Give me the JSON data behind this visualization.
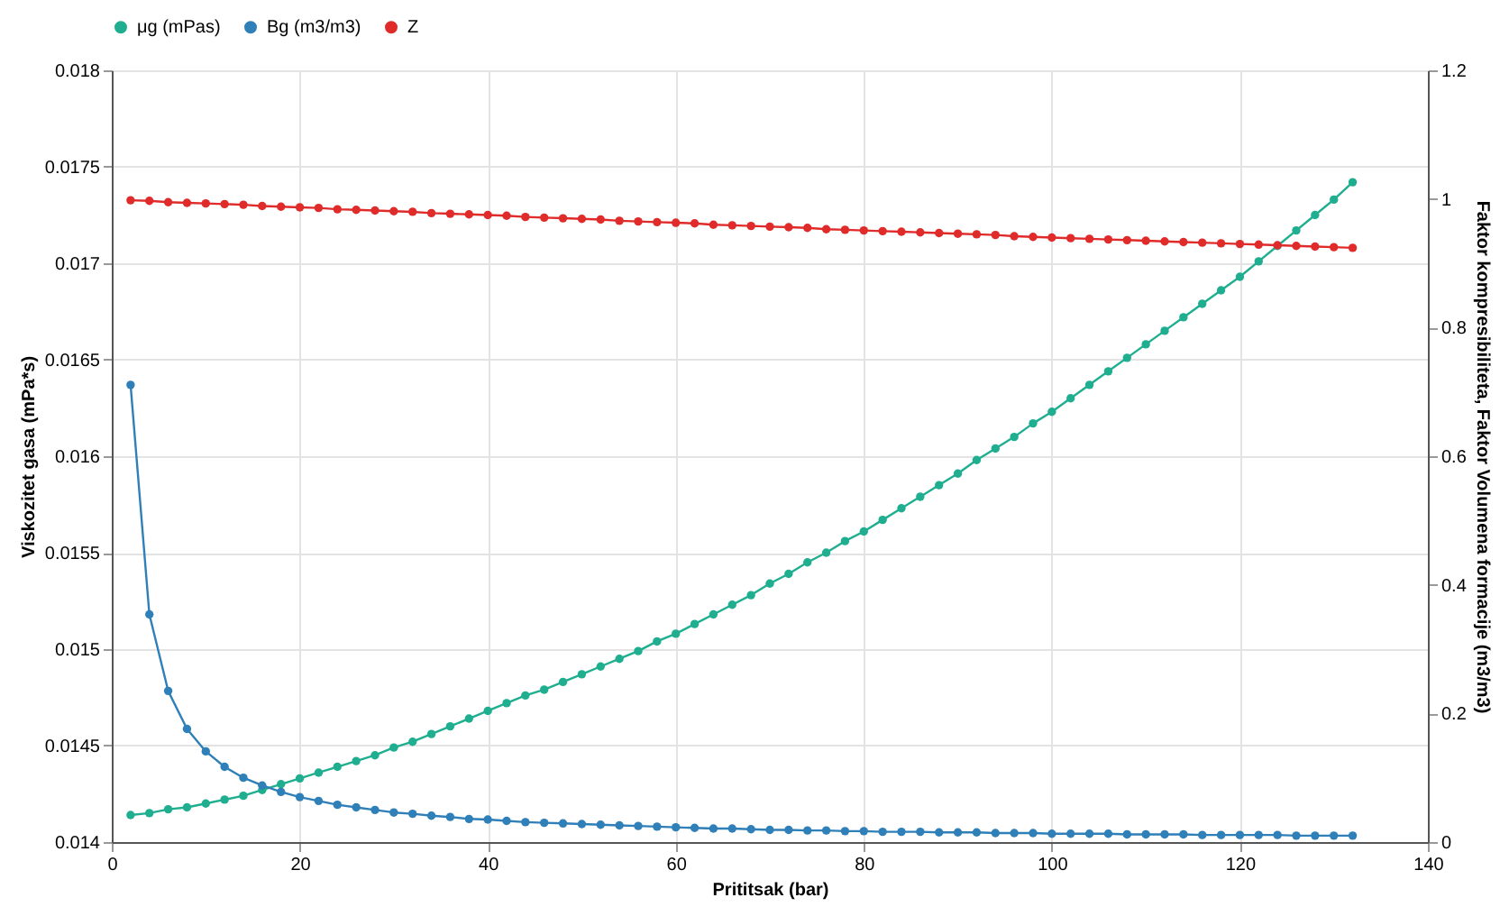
{
  "chart_data": {
    "type": "line",
    "xlabel": "Prititsak (bar)",
    "ylabel": "Viskozitet gasa (mPa*s)",
    "y2label": "Faktor kompresibiliteta, Faktor Volumena formacije (m3/m3)",
    "x": [
      2,
      4,
      6,
      8,
      10,
      12,
      14,
      16,
      18,
      20,
      22,
      24,
      26,
      28,
      30,
      32,
      34,
      36,
      38,
      40,
      42,
      44,
      46,
      48,
      50,
      52,
      54,
      56,
      58,
      60,
      62,
      64,
      66,
      68,
      70,
      72,
      74,
      76,
      78,
      80,
      82,
      84,
      86,
      88,
      90,
      92,
      94,
      96,
      98,
      100,
      102,
      104,
      106,
      108,
      110,
      112,
      114,
      116,
      118,
      120,
      122,
      124,
      126,
      128,
      130,
      132
    ],
    "series": [
      {
        "name": "μg (mPas)",
        "color": "#1fae8f",
        "values": [
          0.01414,
          0.01415,
          0.01417,
          0.01418,
          0.0142,
          0.01422,
          0.01424,
          0.01427,
          0.0143,
          0.01433,
          0.01436,
          0.01439,
          0.01442,
          0.01445,
          0.01449,
          0.01452,
          0.01456,
          0.0146,
          0.01464,
          0.01468,
          0.01472,
          0.01476,
          0.01479,
          0.01483,
          0.01487,
          0.01491,
          0.01495,
          0.01499,
          0.01504,
          0.01508,
          0.01513,
          0.01518,
          0.01523,
          0.01528,
          0.01534,
          0.01539,
          0.01545,
          0.0155,
          0.01556,
          0.01561,
          0.01567,
          0.01573,
          0.01579,
          0.01585,
          0.01591,
          0.01598,
          0.01604,
          0.0161,
          0.01617,
          0.01623,
          0.0163,
          0.01637,
          0.01644,
          0.01651,
          0.01658,
          0.01665,
          0.01672,
          0.01679,
          0.01686,
          0.01693,
          0.01701,
          0.01709,
          0.01717,
          0.01725,
          0.01733,
          0.01742
        ]
      },
      {
        "name": "Bg (m3/m3)",
        "color": "#2f7fb8",
        "axis": "y2",
        "values": [
          0.711,
          0.354,
          0.235,
          0.176,
          0.141,
          0.117,
          0.1,
          0.088,
          0.078,
          0.07,
          0.064,
          0.058,
          0.054,
          0.05,
          0.046,
          0.044,
          0.041,
          0.039,
          0.036,
          0.035,
          0.033,
          0.031,
          0.03,
          0.029,
          0.028,
          0.027,
          0.026,
          0.025,
          0.024,
          0.023,
          0.022,
          0.021,
          0.021,
          0.02,
          0.019,
          0.019,
          0.018,
          0.018,
          0.017,
          0.017,
          0.016,
          0.016,
          0.016,
          0.015,
          0.015,
          0.015,
          0.014,
          0.014,
          0.014,
          0.013,
          0.013,
          0.013,
          0.013,
          0.012,
          0.012,
          0.012,
          0.012,
          0.011,
          0.011,
          0.011,
          0.011,
          0.011,
          0.01,
          0.01,
          0.01,
          0.01
        ]
      },
      {
        "name": "Z",
        "color": "#e02b2b",
        "axis": "y2",
        "values": [
          0.998,
          0.997,
          0.995,
          0.994,
          0.993,
          0.992,
          0.991,
          0.989,
          0.988,
          0.987,
          0.986,
          0.984,
          0.983,
          0.982,
          0.981,
          0.98,
          0.978,
          0.977,
          0.976,
          0.975,
          0.974,
          0.972,
          0.971,
          0.97,
          0.969,
          0.968,
          0.966,
          0.965,
          0.964,
          0.963,
          0.962,
          0.96,
          0.959,
          0.958,
          0.957,
          0.956,
          0.955,
          0.953,
          0.952,
          0.951,
          0.95,
          0.949,
          0.948,
          0.947,
          0.946,
          0.945,
          0.944,
          0.942,
          0.941,
          0.94,
          0.939,
          0.938,
          0.937,
          0.936,
          0.935,
          0.934,
          0.933,
          0.932,
          0.931,
          0.93,
          0.929,
          0.928,
          0.927,
          0.926,
          0.925,
          0.924
        ]
      }
    ],
    "xlim": [
      0,
      140
    ],
    "xticks": [
      0,
      20,
      40,
      60,
      80,
      100,
      120,
      140
    ],
    "ylim": [
      0.014,
      0.018
    ],
    "yticks": [
      0.014,
      0.0145,
      0.015,
      0.0155,
      0.016,
      0.0165,
      0.017,
      0.0175,
      0.018
    ],
    "y2lim": [
      0,
      1.2
    ],
    "y2ticks": [
      0,
      0.2,
      0.4,
      0.6,
      0.8,
      1,
      1.2
    ],
    "grid": true,
    "legend": "top",
    "marker": "circle",
    "line_style": "solid"
  }
}
